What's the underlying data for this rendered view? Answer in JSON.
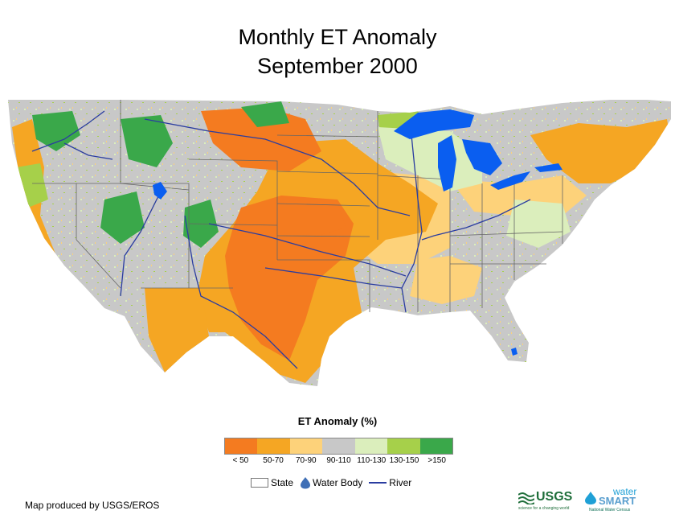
{
  "title": {
    "line1": "Monthly ET Anomaly",
    "line2": "September 2000"
  },
  "legend": {
    "title": "ET Anomaly (%)",
    "classes": [
      {
        "label": "< 50",
        "color": "#f47b20"
      },
      {
        "label": "50-70",
        "color": "#f5a623"
      },
      {
        "label": "70-90",
        "color": "#fdd27a"
      },
      {
        "label": "90-110",
        "color": "#c8c8c8"
      },
      {
        "label": "110-130",
        "color": "#dbeebc"
      },
      {
        "label": "130-150",
        "color": "#a6d04a"
      },
      {
        "label": ">150",
        "color": "#3aa84a"
      }
    ]
  },
  "symbols": {
    "state": "State",
    "water_body": "Water Body",
    "river": "River"
  },
  "credit": "Map produced by USGS/EROS",
  "logos": {
    "usgs": {
      "name": "USGS",
      "tagline": "science for a changing world"
    },
    "watersmart": {
      "name_top": "water",
      "name_bottom": "SMART",
      "tagline": "National Water Census"
    }
  },
  "colors": {
    "water": "#0a5ef0",
    "river": "#2a3da0",
    "state_line": "#666666"
  }
}
